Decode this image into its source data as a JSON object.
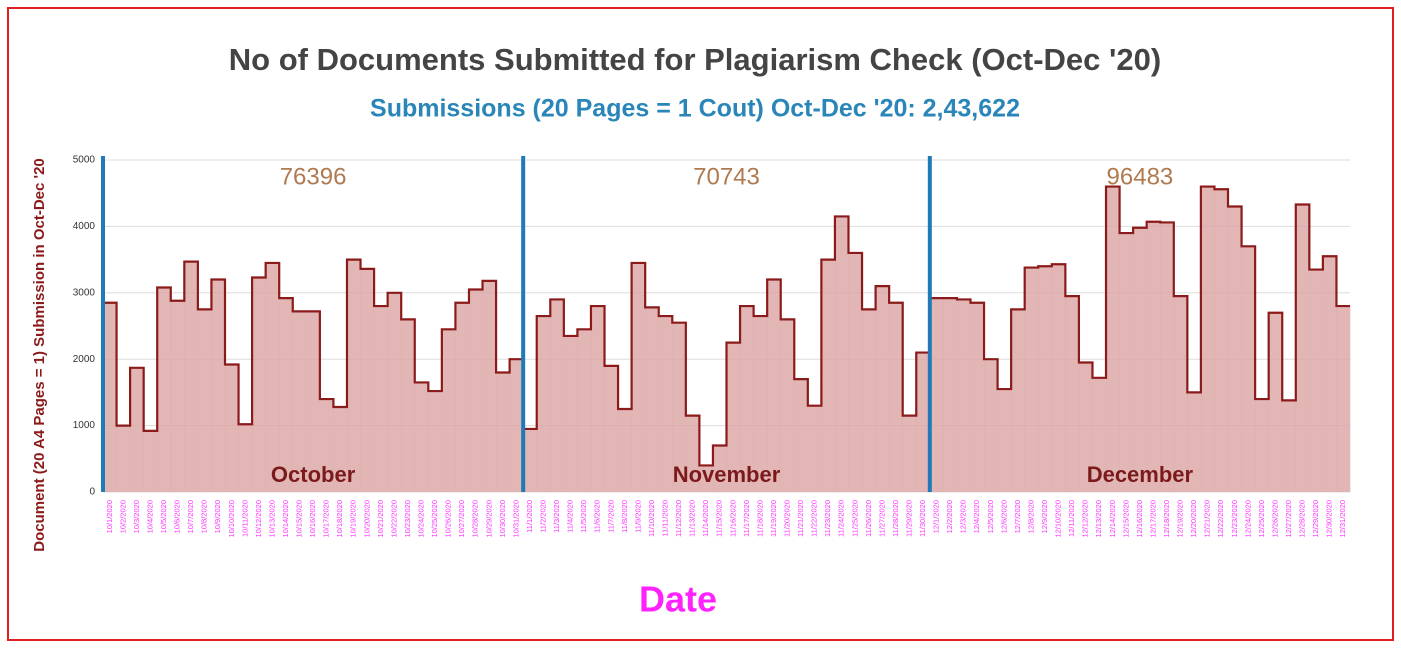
{
  "chart_data": {
    "type": "step-area",
    "title": "No of Documents Submitted for Plagiarism Check (Oct-Dec '20)",
    "subtitle": "Submissions (20 Pages = 1 Cout) Oct-Dec '20: 2,43,622",
    "y_label": "Document (20 A4 Pages = 1) Submission in Oct-Dec '20",
    "x_label": "Date",
    "months": [
      {
        "name": "October",
        "total": 76396
      },
      {
        "name": "November",
        "total": 70743
      },
      {
        "name": "December",
        "total": 96483
      }
    ],
    "categories": [
      "10/1/2020",
      "10/2/2020",
      "10/3/2020",
      "10/4/2020",
      "10/5/2020",
      "10/6/2020",
      "10/7/2020",
      "10/8/2020",
      "10/9/2020",
      "10/10/2020",
      "10/11/2020",
      "10/12/2020",
      "10/13/2020",
      "10/14/2020",
      "10/15/2020",
      "10/16/2020",
      "10/17/2020",
      "10/18/2020",
      "10/19/2020",
      "10/20/2020",
      "10/21/2020",
      "10/22/2020",
      "10/23/2020",
      "10/24/2020",
      "10/25/2020",
      "10/26/2020",
      "10/27/2020",
      "10/28/2020",
      "10/29/2020",
      "10/30/2020",
      "10/31/2020",
      "11/1/2020",
      "11/2/2020",
      "11/3/2020",
      "11/4/2020",
      "11/5/2020",
      "11/6/2020",
      "11/7/2020",
      "11/8/2020",
      "11/9/2020",
      "11/10/2020",
      "11/11/2020",
      "11/12/2020",
      "11/13/2020",
      "11/14/2020",
      "11/15/2020",
      "11/16/2020",
      "11/17/2020",
      "11/18/2020",
      "11/19/2020",
      "11/20/2020",
      "11/21/2020",
      "11/22/2020",
      "11/23/2020",
      "11/24/2020",
      "11/25/2020",
      "11/26/2020",
      "11/27/2020",
      "11/28/2020",
      "11/29/2020",
      "11/30/2020",
      "12/1/2020",
      "12/2/2020",
      "12/3/2020",
      "12/4/2020",
      "12/5/2020",
      "12/6/2020",
      "12/7/2020",
      "12/8/2020",
      "12/9/2020",
      "12/10/2020",
      "12/11/2020",
      "12/12/2020",
      "12/13/2020",
      "12/14/2020",
      "12/15/2020",
      "12/16/2020",
      "12/17/2020",
      "12/18/2020",
      "12/19/2020",
      "12/20/2020",
      "12/21/2020",
      "12/22/2020",
      "12/23/2020",
      "12/24/2020",
      "12/25/2020",
      "12/26/2020",
      "12/27/2020",
      "12/28/2020",
      "12/29/2020",
      "12/30/2020",
      "12/31/2020"
    ],
    "values": [
      2850,
      1000,
      1870,
      920,
      3080,
      2880,
      3470,
      2750,
      3200,
      1920,
      1020,
      3230,
      3450,
      2920,
      2720,
      2720,
      1400,
      1280,
      3500,
      3360,
      2800,
      3000,
      2600,
      1650,
      1520,
      2450,
      2850,
      3050,
      3180,
      1800,
      2000,
      950,
      2650,
      2900,
      2350,
      2450,
      2800,
      1900,
      1250,
      3450,
      2780,
      2650,
      2550,
      1150,
      400,
      700,
      2250,
      2800,
      2650,
      3200,
      2600,
      1700,
      1300,
      3500,
      4150,
      3600,
      2750,
      3100,
      2850,
      1150,
      2100,
      2920,
      2920,
      2900,
      2850,
      2000,
      1550,
      2750,
      3380,
      3400,
      3430,
      2950,
      1950,
      1720,
      4600,
      3900,
      3980,
      4070,
      4060,
      2950,
      1500,
      4600,
      4560,
      4300,
      3700,
      1400,
      2700,
      1380,
      4330,
      3350,
      3550,
      2800
    ],
    "color": "#8b1a1a",
    "fill": "#dca4a4",
    "divider_color": "#1f7ab8",
    "ylim": [
      0,
      5000
    ],
    "yticks": [
      0,
      1000,
      2000,
      3000,
      4000,
      5000
    ],
    "grid": true
  }
}
